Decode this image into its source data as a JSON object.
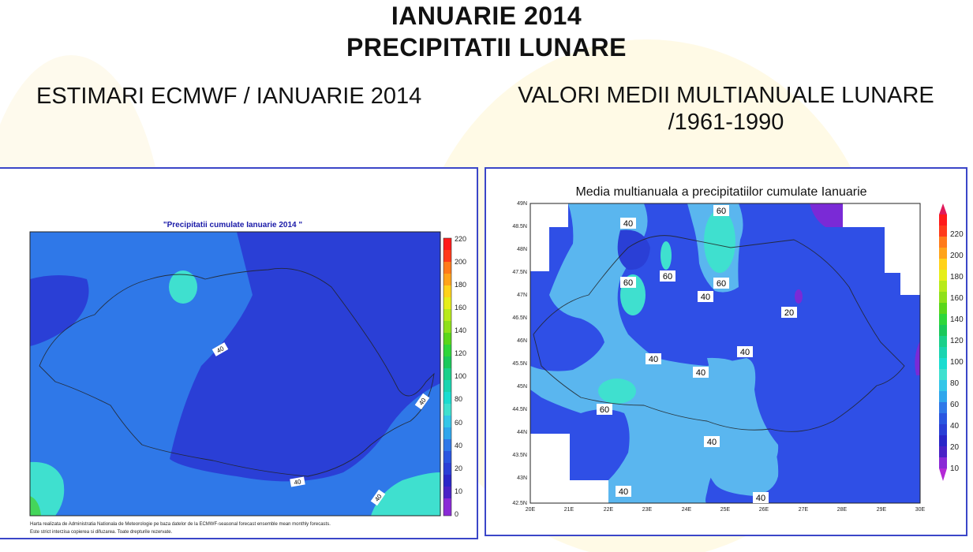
{
  "header": {
    "title_line1": "IANUARIE 2014",
    "title_line2": "PRECIPITATII LUNARE"
  },
  "left": {
    "heading": "ESTIMARI ECMWF / IANUARIE 2014",
    "map_title": "\"Precipitatii cumulate Ianuarie 2014 \"",
    "contour_labels": [
      "40",
      "40",
      "40",
      "40"
    ],
    "legend_ticks": [
      "220",
      "200",
      "180",
      "160",
      "140",
      "120",
      "100",
      "80",
      "60",
      "40",
      "20",
      "10",
      "0"
    ],
    "footnote_line1": "Harta realizata de Administratia Nationala de Meteorologie pe baza datelor de la ECMWF-seasonal forecast ensemble mean monthly forecasts.",
    "footnote_line2": "Este strict interzisa copierea si difuzarea. Toate drepturile rezervate."
  },
  "right": {
    "heading_line1": "VALORI MEDII MULTIANUALE LUNARE",
    "heading_line2": "/1961-1990",
    "map_title": "Media multianuala a precipitatiilor cumulate Ianuarie",
    "contour_labels": [
      "40",
      "60",
      "60",
      "60",
      "40",
      "60",
      "20",
      "40",
      "40",
      "40",
      "60",
      "40",
      "40",
      "40"
    ],
    "y_ticks": [
      "49N",
      "48.5N",
      "48N",
      "47.5N",
      "47N",
      "46.5N",
      "46N",
      "45.5N",
      "45N",
      "44.5N",
      "44N",
      "43.5N",
      "43N",
      "42.5N"
    ],
    "x_ticks": [
      "20E",
      "21E",
      "22E",
      "23E",
      "24E",
      "25E",
      "26E",
      "27E",
      "28E",
      "29E",
      "30E"
    ],
    "legend_ticks": [
      "220",
      "200",
      "180",
      "160",
      "140",
      "120",
      "100",
      "80",
      "60",
      "40",
      "20",
      "10"
    ]
  },
  "colors": {
    "panel_border": "#3b46c8",
    "level_20_40": "#2a3fd6",
    "level_40_60": "#2f78e8",
    "level_60_80": "#5ab6ef",
    "level_80_100": "#3fe0cf",
    "level_10_20": "#7a2ad6"
  }
}
